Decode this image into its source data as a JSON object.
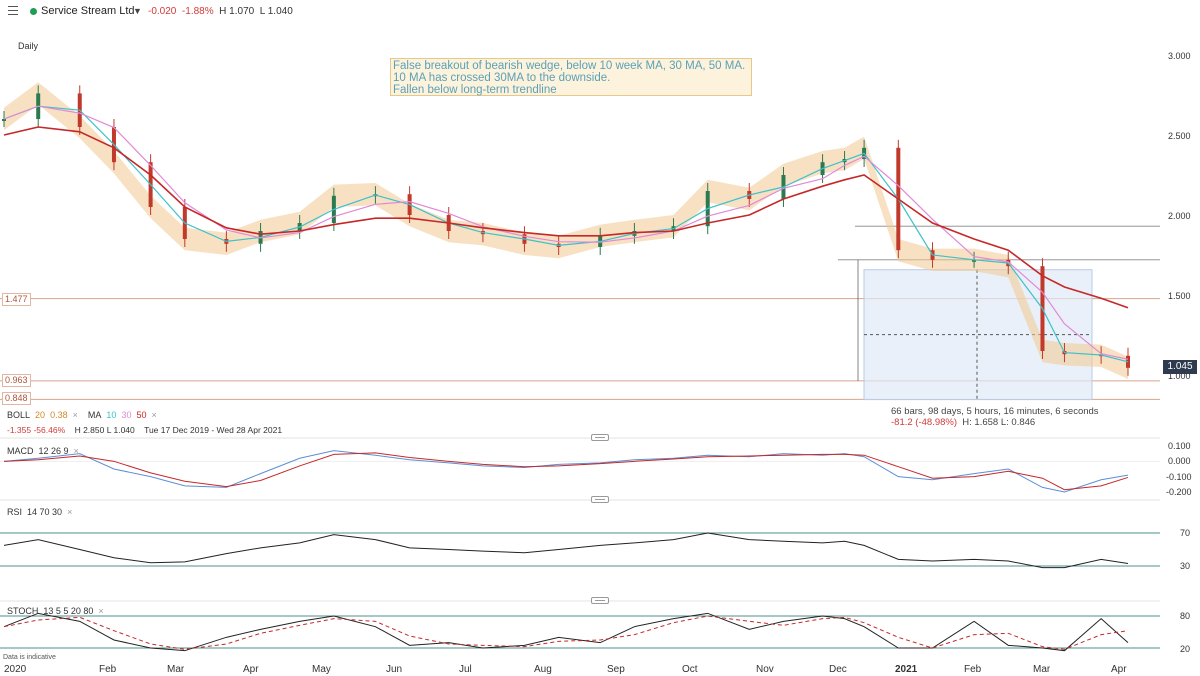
{
  "header": {
    "instrument": "Service Stream Ltd",
    "change": "-0.020",
    "change_pct": "-1.88%",
    "high": "H 1.070",
    "low": "L 1.040",
    "status_color": "#1f9d55"
  },
  "period": "Daily",
  "annotation": {
    "lines": [
      "False breakout of bearish wedge, below 10 week MA, 30 MA, 50 MA.",
      "10 MA has crossed 30MA to the downside.",
      "Fallen below long-term trendline"
    ]
  },
  "price_axis": {
    "ticks": [
      "3.000",
      "2.500",
      "2.000",
      "1.500",
      "1.000"
    ],
    "current_price": "1.045"
  },
  "hlines": {
    "labels": [
      "1.477",
      "0.963",
      "0.848"
    ],
    "top_line": "1.930",
    "trendline": "1.720"
  },
  "measure": {
    "line1": "66 bars, 98 days, 5 hours, 16 minutes, 6 seconds",
    "line2_neg": "-81.2 (-48.98%)",
    "line2_rest": "H: 1.658 L: 0.846"
  },
  "legend_boll": {
    "name": "BOLL",
    "p1": "20",
    "p2": "0.38",
    "close": "×",
    "ma_name": "MA",
    "ma1": "10",
    "ma2": "30",
    "ma3": "50",
    "stats_neg": "-1.355  -56.46%",
    "stats_hl": "H 2.850  L 1.040",
    "range": "Tue 17 Dec 2019 - Wed 28 Apr 2021"
  },
  "legend_macd": {
    "name": "MACD",
    "params": "12  26  9",
    "close": "×"
  },
  "legend_rsi": {
    "name": "RSI",
    "params": "14  70  30",
    "close": "×"
  },
  "legend_stoch": {
    "name": "STOCH",
    "params": "13  5  5  20  80",
    "close": "×"
  },
  "macd_axis": [
    "0.100",
    "0.000",
    "-0.100",
    "-0.200"
  ],
  "rsi_axis": [
    "70",
    "30"
  ],
  "stoch_axis": [
    "80",
    "20"
  ],
  "x_axis": [
    "2020",
    "Feb",
    "Mar",
    "Apr",
    "May",
    "Jun",
    "Jul",
    "Aug",
    "Sep",
    "Oct",
    "Nov",
    "Dec",
    "2021",
    "Feb",
    "Mar",
    "Apr"
  ],
  "footer_note": "Data is indicative",
  "colors": {
    "up": "#2c7a4f",
    "down": "#c0392b",
    "ma10": "#3fc1c9",
    "ma30": "#e08ad6",
    "ma50": "#c62828",
    "boll_band": "#f3c98f"
  },
  "chart_data": {
    "type": "line",
    "price": {
      "x": [
        "2020-01-01",
        "2020-01-15",
        "2020-02-01",
        "2020-02-15",
        "2020-03-01",
        "2020-03-15",
        "2020-04-01",
        "2020-04-15",
        "2020-05-01",
        "2020-05-15",
        "2020-06-01",
        "2020-06-15",
        "2020-07-01",
        "2020-07-15",
        "2020-08-01",
        "2020-08-15",
        "2020-09-01",
        "2020-09-15",
        "2020-10-01",
        "2020-10-15",
        "2020-11-01",
        "2020-11-15",
        "2020-12-01",
        "2020-12-10",
        "2020-12-18",
        "2021-01-01",
        "2021-01-15",
        "2021-02-01",
        "2021-02-15",
        "2021-03-01",
        "2021-03-10",
        "2021-03-25",
        "2021-04-05"
      ],
      "close": [
        2.6,
        2.76,
        2.55,
        2.33,
        2.05,
        1.85,
        1.82,
        1.9,
        1.95,
        2.12,
        2.13,
        2.0,
        1.9,
        1.88,
        1.82,
        1.8,
        1.87,
        1.9,
        1.93,
        2.15,
        2.1,
        2.25,
        2.33,
        2.35,
        2.42,
        1.78,
        1.72,
        1.72,
        1.68,
        1.15,
        1.13,
        1.12,
        1.045
      ]
    },
    "ma50": [
      2.5,
      2.55,
      2.52,
      2.42,
      2.25,
      2.05,
      1.92,
      1.88,
      1.9,
      1.94,
      1.98,
      1.98,
      1.95,
      1.92,
      1.89,
      1.87,
      1.87,
      1.89,
      1.9,
      1.95,
      2.0,
      2.1,
      2.18,
      2.22,
      2.25,
      2.1,
      1.95,
      1.85,
      1.78,
      1.62,
      1.55,
      1.48,
      1.42
    ],
    "ylim": [
      0.85,
      3.05
    ],
    "macd": [
      0.0,
      0.02,
      0.05,
      -0.05,
      -0.1,
      -0.16,
      -0.17,
      -0.08,
      0.02,
      0.07,
      0.04,
      0.01,
      -0.01,
      -0.03,
      -0.04,
      -0.02,
      -0.01,
      0.01,
      0.02,
      0.04,
      0.03,
      0.05,
      0.04,
      0.05,
      0.03,
      -0.1,
      -0.12,
      -0.08,
      -0.05,
      -0.17,
      -0.2,
      -0.12,
      -0.09
    ],
    "rsi": [
      55,
      62,
      50,
      40,
      34,
      35,
      45,
      52,
      58,
      68,
      62,
      52,
      50,
      48,
      46,
      50,
      55,
      58,
      62,
      70,
      62,
      60,
      58,
      60,
      55,
      38,
      36,
      38,
      36,
      28,
      28,
      38,
      33
    ],
    "stoch": [
      60,
      85,
      70,
      35,
      20,
      15,
      40,
      55,
      70,
      80,
      60,
      25,
      30,
      20,
      25,
      40,
      30,
      60,
      75,
      85,
      55,
      70,
      80,
      75,
      60,
      20,
      20,
      70,
      25,
      20,
      15,
      75,
      30
    ]
  }
}
